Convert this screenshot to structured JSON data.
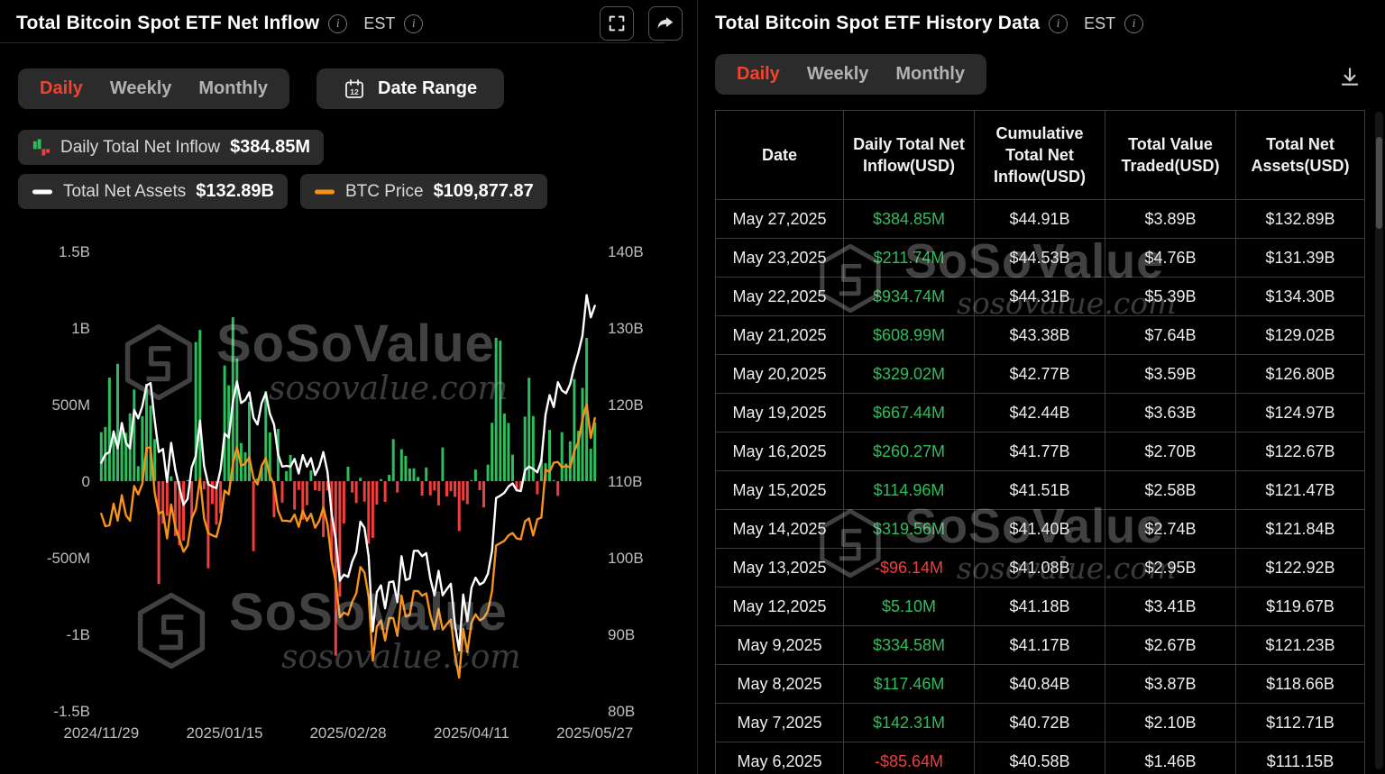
{
  "watermark": {
    "brand": "SoSoValue",
    "domain": "sosovalue.com"
  },
  "colors": {
    "green": "#2ebd5b",
    "red": "#f23d3d",
    "orange": "#f7931a",
    "accent": "#f4432c",
    "white_line": "#ffffff"
  },
  "left_panel": {
    "title": "Total Bitcoin Spot ETF Net Inflow",
    "timezone": "EST",
    "tabs": {
      "daily": "Daily",
      "weekly": "Weekly",
      "monthly": "Monthly"
    },
    "date_range_label": "Date Range",
    "date_range_icon_glyph": "12",
    "legend": {
      "inflow_label": "Daily Total Net Inflow",
      "inflow_value": "$384.85M",
      "assets_label": "Total Net Assets",
      "assets_value": "$132.89B",
      "btc_label": "BTC Price",
      "btc_value": "$109,877.87"
    }
  },
  "right_panel": {
    "title": "Total Bitcoin Spot ETF History Data",
    "timezone": "EST",
    "tabs": {
      "daily": "Daily",
      "weekly": "Weekly",
      "monthly": "Monthly"
    },
    "table": {
      "columns": [
        "Date",
        "Daily Total Net Inflow(USD)",
        "Cumulative Total Net Inflow(USD)",
        "Total Value Traded(USD)",
        "Total Net Assets(USD)"
      ],
      "rows": [
        {
          "date": "May 27,2025",
          "daily_net_inflow": "$384.85M",
          "cumulative_net_inflow": "$44.91B",
          "value_traded": "$3.89B",
          "net_assets": "$132.89B"
        },
        {
          "date": "May 23,2025",
          "daily_net_inflow": "$211.74M",
          "cumulative_net_inflow": "$44.53B",
          "value_traded": "$4.76B",
          "net_assets": "$131.39B"
        },
        {
          "date": "May 22,2025",
          "daily_net_inflow": "$934.74M",
          "cumulative_net_inflow": "$44.31B",
          "value_traded": "$5.39B",
          "net_assets": "$134.30B"
        },
        {
          "date": "May 21,2025",
          "daily_net_inflow": "$608.99M",
          "cumulative_net_inflow": "$43.38B",
          "value_traded": "$7.64B",
          "net_assets": "$129.02B"
        },
        {
          "date": "May 20,2025",
          "daily_net_inflow": "$329.02M",
          "cumulative_net_inflow": "$42.77B",
          "value_traded": "$3.59B",
          "net_assets": "$126.80B"
        },
        {
          "date": "May 19,2025",
          "daily_net_inflow": "$667.44M",
          "cumulative_net_inflow": "$42.44B",
          "value_traded": "$3.63B",
          "net_assets": "$124.97B"
        },
        {
          "date": "May 16,2025",
          "daily_net_inflow": "$260.27M",
          "cumulative_net_inflow": "$41.77B",
          "value_traded": "$2.70B",
          "net_assets": "$122.67B"
        },
        {
          "date": "May 15,2025",
          "daily_net_inflow": "$114.96M",
          "cumulative_net_inflow": "$41.51B",
          "value_traded": "$2.58B",
          "net_assets": "$121.47B"
        },
        {
          "date": "May 14,2025",
          "daily_net_inflow": "$319.56M",
          "cumulative_net_inflow": "$41.40B",
          "value_traded": "$2.74B",
          "net_assets": "$121.84B"
        },
        {
          "date": "May 13,2025",
          "daily_net_inflow": "-$96.14M",
          "cumulative_net_inflow": "$41.08B",
          "value_traded": "$2.95B",
          "net_assets": "$122.92B"
        },
        {
          "date": "May 12,2025",
          "daily_net_inflow": "$5.10M",
          "cumulative_net_inflow": "$41.18B",
          "value_traded": "$3.41B",
          "net_assets": "$119.67B"
        },
        {
          "date": "May 9,2025",
          "daily_net_inflow": "$334.58M",
          "cumulative_net_inflow": "$41.17B",
          "value_traded": "$2.67B",
          "net_assets": "$121.23B"
        },
        {
          "date": "May 8,2025",
          "daily_net_inflow": "$117.46M",
          "cumulative_net_inflow": "$40.84B",
          "value_traded": "$3.87B",
          "net_assets": "$118.66B"
        },
        {
          "date": "May 7,2025",
          "daily_net_inflow": "$142.31M",
          "cumulative_net_inflow": "$40.72B",
          "value_traded": "$2.10B",
          "net_assets": "$112.71B"
        },
        {
          "date": "May 6,2025",
          "daily_net_inflow": "-$85.64M",
          "cumulative_net_inflow": "$40.58B",
          "value_traded": "$1.46B",
          "net_assets": "$111.15B"
        }
      ]
    }
  },
  "chart_data": {
    "type": "combo_bar_line",
    "title": "Total Bitcoin Spot ETF Net Inflow",
    "legend_position": "top",
    "grid": false,
    "x_tick_labels": [
      "2024/11/29",
      "2025/01/15",
      "2025/02/28",
      "2025/04/11",
      "2025/05/27"
    ],
    "left_axis": {
      "series": "Daily Total Net Inflow",
      "ticks": [
        "1.5B",
        "1B",
        "500M",
        "0",
        "-500M",
        "-1B",
        "-1.5B"
      ],
      "range_usd_millions": [
        -1500,
        1500
      ]
    },
    "right_axis": {
      "series": "Total Net Assets",
      "ticks": [
        "140B",
        "130B",
        "120B",
        "110B",
        "100B",
        "90B",
        "80B"
      ],
      "range_usd_billions": [
        80,
        140
      ]
    },
    "x": [
      "2024/11/29",
      "2024/12/02",
      "2024/12/03",
      "2024/12/04",
      "2024/12/05",
      "2024/12/06",
      "2024/12/09",
      "2024/12/10",
      "2024/12/11",
      "2024/12/12",
      "2024/12/13",
      "2024/12/16",
      "2024/12/17",
      "2024/12/18",
      "2024/12/19",
      "2024/12/20",
      "2024/12/23",
      "2024/12/24",
      "2024/12/26",
      "2024/12/27",
      "2024/12/30",
      "2024/12/31",
      "2025/01/02",
      "2025/01/03",
      "2025/01/06",
      "2025/01/07",
      "2025/01/08",
      "2025/01/10",
      "2025/01/13",
      "2025/01/14",
      "2025/01/15",
      "2025/01/16",
      "2025/01/17",
      "2025/01/21",
      "2025/01/22",
      "2025/01/23",
      "2025/01/24",
      "2025/01/27",
      "2025/01/28",
      "2025/01/29",
      "2025/01/30",
      "2025/01/31",
      "2025/02/03",
      "2025/02/04",
      "2025/02/05",
      "2025/02/06",
      "2025/02/07",
      "2025/02/10",
      "2025/02/11",
      "2025/02/12",
      "2025/02/13",
      "2025/02/14",
      "2025/02/18",
      "2025/02/19",
      "2025/02/20",
      "2025/02/21",
      "2025/02/24",
      "2025/02/25",
      "2025/02/26",
      "2025/02/27",
      "2025/02/28",
      "2025/03/03",
      "2025/03/04",
      "2025/03/05",
      "2025/03/06",
      "2025/03/07",
      "2025/03/10",
      "2025/03/11",
      "2025/03/12",
      "2025/03/13",
      "2025/03/14",
      "2025/03/17",
      "2025/03/18",
      "2025/03/19",
      "2025/03/20",
      "2025/03/21",
      "2025/03/24",
      "2025/03/25",
      "2025/03/26",
      "2025/03/27",
      "2025/03/28",
      "2025/03/31",
      "2025/04/01",
      "2025/04/02",
      "2025/04/03",
      "2025/04/04",
      "2025/04/07",
      "2025/04/08",
      "2025/04/09",
      "2025/04/10",
      "2025/04/11",
      "2025/04/14",
      "2025/04/15",
      "2025/04/16",
      "2025/04/17",
      "2025/04/21",
      "2025/04/22",
      "2025/04/23",
      "2025/04/24",
      "2025/04/25",
      "2025/04/28",
      "2025/04/29",
      "2025/04/30",
      "2025/05/01",
      "2025/05/02",
      "2025/05/05",
      "2025/05/06",
      "2025/05/07",
      "2025/05/08",
      "2025/05/09",
      "2025/05/12",
      "2025/05/13",
      "2025/05/14",
      "2025/05/15",
      "2025/05/16",
      "2025/05/19",
      "2025/05/20",
      "2025/05/21",
      "2025/05/22",
      "2025/05/23",
      "2025/05/27"
    ],
    "series": [
      {
        "name": "Daily Total Net Inflow",
        "type": "bar",
        "unit": "USD millions (estimated from chart)",
        "values": [
          320,
          354,
          676,
          308,
          766,
          377,
          315,
          443,
          598,
          98,
          424,
          636,
          493,
          275,
          -672,
          -277,
          -226,
          31,
          -358,
          -420,
          -388,
          5,
          -243,
          908,
          987,
          -53,
          -569,
          -149,
          -284,
          -210,
          755,
          626,
          1070,
          802,
          249,
          188,
          518,
          -457,
          18,
          92,
          588,
          319,
          -235,
          341,
          -140,
          66,
          171,
          -186,
          -57,
          -251,
          -157,
          70,
          -60,
          -64,
          -365,
          -62,
          -517,
          -1139,
          -754,
          -276,
          94,
          -74,
          -143,
          22,
          -134,
          -409,
          -370,
          -153,
          13,
          -135,
          41,
          275,
          -74,
          209,
          165,
          83,
          84,
          27,
          -94,
          89,
          -93,
          -61,
          -158,
          220,
          -99,
          -65,
          -103,
          -326,
          -127,
          -150,
          1,
          76,
          -59,
          -171,
          108,
          381,
          936,
          917,
          442,
          380,
          173,
          -64,
          -56,
          422,
          675,
          425,
          -86,
          142,
          117,
          335,
          5,
          -96,
          320,
          115,
          260,
          667,
          329,
          609,
          935,
          212,
          385
        ]
      },
      {
        "name": "Total Net Assets",
        "type": "line",
        "axis": "right",
        "unit": "USD billions (estimated from chart)",
        "values": [
          112.4,
          113.5,
          113.8,
          116.5,
          114.3,
          117.6,
          115.0,
          114.3,
          119.3,
          118.2,
          119.8,
          122.5,
          122.8,
          117.9,
          113.8,
          114.2,
          109.9,
          115.0,
          111.5,
          109.2,
          106.9,
          107.7,
          111.8,
          113.3,
          117.9,
          112.0,
          109.6,
          109.3,
          109.1,
          111.5,
          116.2,
          115.7,
          120.4,
          123.0,
          120.2,
          120.6,
          121.6,
          118.3,
          117.4,
          120.2,
          121.5,
          118.8,
          117.4,
          113.5,
          111.9,
          112.0,
          111.9,
          112.9,
          111.0,
          113.4,
          111.9,
          113.0,
          110.8,
          111.9,
          113.8,
          111.2,
          105.7,
          102.4,
          97.0,
          97.8,
          97.5,
          99.5,
          100.7,
          104.7,
          103.9,
          100.2,
          90.4,
          95.5,
          96.4,
          93.4,
          96.8,
          96.9,
          94.2,
          100.2,
          97.1,
          97.3,
          100.9,
          100.9,
          100.2,
          100.6,
          97.3,
          95.1,
          98.3,
          95.1,
          95.9,
          96.6,
          91.2,
          87.9,
          95.2,
          91.7,
          96.1,
          97.4,
          96.5,
          96.8,
          97.9,
          100.9,
          107.8,
          108.1,
          108.5,
          109.3,
          109.7,
          108.8,
          108.7,
          111.4,
          111.9,
          111.6,
          111.15,
          112.71,
          118.66,
          121.23,
          119.67,
          122.92,
          121.84,
          121.47,
          122.67,
          124.97,
          126.8,
          129.02,
          134.3,
          131.39,
          132.89
        ]
      },
      {
        "name": "BTC Price",
        "type": "line",
        "axis": "hidden",
        "unit": "USD (estimated from chart)",
        "values": [
          97500,
          95900,
          96000,
          98800,
          96600,
          99900,
          97300,
          96600,
          101100,
          100000,
          101400,
          106000,
          106100,
          100200,
          97500,
          97800,
          94300,
          98700,
          95800,
          94200,
          92600,
          93400,
          96900,
          98100,
          102100,
          96900,
          95000,
          94700,
          94500,
          96600,
          100500,
          100000,
          104000,
          106100,
          103700,
          104000,
          104800,
          102100,
          101300,
          103700,
          104700,
          102400,
          101300,
          97900,
          96600,
          96600,
          96500,
          97400,
          95800,
          97900,
          96600,
          97500,
          95700,
          96600,
          98300,
          96100,
          91400,
          88700,
          84100,
          84700,
          84400,
          86100,
          87200,
          90600,
          89900,
          86800,
          78500,
          82900,
          83700,
          81100,
          84000,
          84000,
          81700,
          86900,
          84200,
          84400,
          87500,
          87500,
          86900,
          87200,
          84400,
          82500,
          85200,
          82500,
          83200,
          83800,
          79200,
          76300,
          82600,
          79600,
          83400,
          84500,
          83700,
          84000,
          84900,
          87500,
          93400,
          93700,
          94000,
          94700,
          95000,
          94300,
          94200,
          96500,
          96900,
          94700,
          96800,
          97000,
          103200,
          102900,
          104100,
          104200,
          103500,
          103700,
          103500,
          105600,
          106800,
          109700,
          111700,
          107300,
          109877
        ]
      }
    ]
  }
}
